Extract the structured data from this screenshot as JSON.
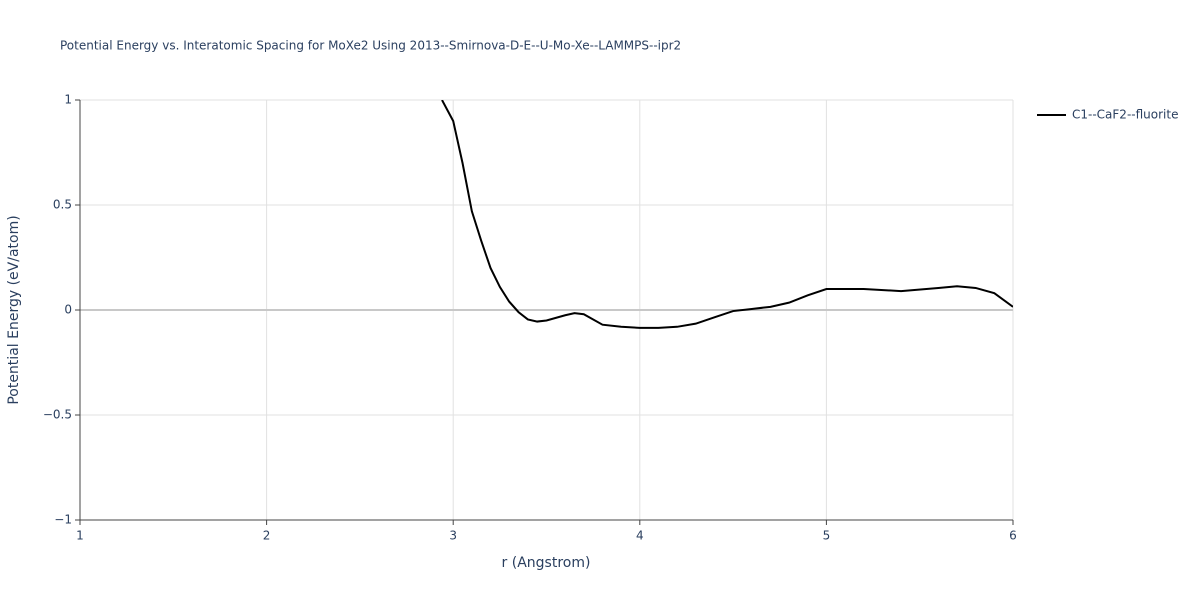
{
  "chart_data": {
    "type": "line",
    "title": "Potential Energy vs. Interatomic Spacing for MoXe2 Using 2013--Smirnova-D-E--U-Mo-Xe--LAMMPS--ipr2",
    "x_label": "r (Angstrom)",
    "y_label": "Potential Energy (eV/atom)",
    "x": [
      2.94,
      3.0,
      3.05,
      3.1,
      3.15,
      3.2,
      3.25,
      3.3,
      3.35,
      3.4,
      3.45,
      3.5,
      3.6,
      3.65,
      3.7,
      3.8,
      3.9,
      4.0,
      4.1,
      4.2,
      4.3,
      4.4,
      4.5,
      4.6,
      4.7,
      4.8,
      4.9,
      5.0,
      5.1,
      5.2,
      5.4,
      5.6,
      5.7,
      5.8,
      5.9,
      6.0
    ],
    "series": [
      {
        "name": "C1--CaF2--fluorite",
        "color": "#000000",
        "values": [
          1.0,
          0.9,
          0.7,
          0.47,
          0.33,
          0.2,
          0.11,
          0.04,
          -0.01,
          -0.045,
          -0.055,
          -0.05,
          -0.025,
          -0.015,
          -0.02,
          -0.07,
          -0.08,
          -0.085,
          -0.085,
          -0.08,
          -0.065,
          -0.035,
          -0.005,
          0.005,
          0.015,
          0.035,
          0.07,
          0.1,
          0.1,
          0.1,
          0.09,
          0.105,
          0.113,
          0.105,
          0.08,
          0.015
        ]
      }
    ],
    "xlim": [
      1,
      6
    ],
    "xticks": [
      1,
      2,
      3,
      4,
      5,
      6
    ],
    "ylim": [
      -1,
      1
    ],
    "yticks": [
      {
        "value": -1,
        "label": "−1"
      },
      {
        "value": -0.5,
        "label": "−0.5"
      },
      0,
      0.5,
      1
    ],
    "grid": true,
    "legend": "top-right"
  }
}
